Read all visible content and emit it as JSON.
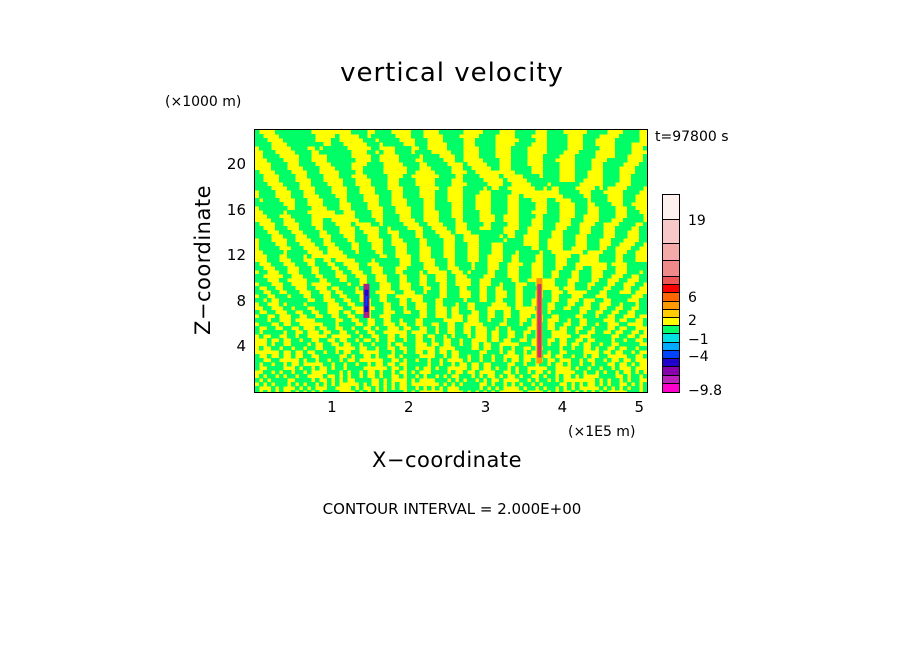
{
  "chart_data": {
    "type": "heatmap",
    "title": "vertical velocity",
    "xlabel": "X−coordinate",
    "ylabel": "Z−coordinate",
    "x_unit": "(×1E5 m)",
    "y_unit": "(×1000 m)",
    "time_label": "t=97800 s",
    "contour_label": "CONTOUR INTERVAL = 2.000E+00",
    "xlim": [
      0,
      5.1
    ],
    "ylim": [
      0,
      23
    ],
    "x_ticks": [
      "1",
      "2",
      "3",
      "4",
      "5"
    ],
    "x_tick_values": [
      1,
      2,
      3,
      4,
      5
    ],
    "y_ticks": [
      "4",
      "8",
      "12",
      "16",
      "20"
    ],
    "y_tick_values": [
      4,
      8,
      12,
      16,
      20
    ],
    "colorbar_labels": [
      "19",
      "6",
      "2",
      "−1",
      "−4",
      "−9.8"
    ],
    "colorbar_label_values": [
      19,
      6,
      2,
      -1,
      -4,
      -9.8
    ],
    "colorbar_range": [
      -9.8,
      21
    ],
    "colorbar_colors": [
      "#ff00cc",
      "#bb22bb",
      "#8800aa",
      "#2200cc",
      "#0044ff",
      "#00aaff",
      "#00e0e0",
      "#00ff66",
      "#ffff00",
      "#ffcc00",
      "#ff9900",
      "#ff6600",
      "#ff0000",
      "#ee5555",
      "#f08a8a",
      "#f5aaaa",
      "#f8c8c8",
      "#fff0f0"
    ],
    "field_colors": {
      "positive": "#ffff00",
      "negative": "#00ff66"
    }
  }
}
